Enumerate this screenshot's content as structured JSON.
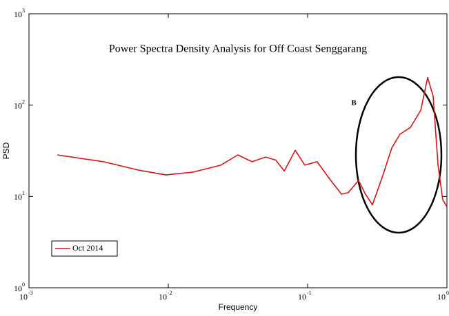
{
  "chart_data": {
    "type": "line",
    "title": "Power Spectra Density Analysis for Off Coast Senggarang",
    "x_label": "Frequency",
    "y_label": "PSD",
    "annotation": "B",
    "log_x": true,
    "log_y": true,
    "legend": "lower-left",
    "xlim": [
      0.001,
      1
    ],
    "ylim": [
      1,
      1000
    ],
    "xticks": [
      {
        "value": 0.001,
        "label": "10",
        "exponent": "-3"
      },
      {
        "value": 0.01,
        "label": "10",
        "exponent": "-2"
      },
      {
        "value": 0.1,
        "label": "10",
        "exponent": "-1"
      },
      {
        "value": 1,
        "label": "10",
        "exponent": "0"
      }
    ],
    "yticks": [
      {
        "value": 1,
        "label": "10",
        "exponent": "0"
      },
      {
        "value": 10,
        "label": "10",
        "exponent": "1"
      },
      {
        "value": 100,
        "label": "10",
        "exponent": "2"
      },
      {
        "value": 1000,
        "label": "10",
        "exponent": "3"
      }
    ],
    "x": [
      0.0016,
      0.00343,
      0.00605,
      0.0096,
      0.0151,
      0.0238,
      0.0316,
      0.0398,
      0.05,
      0.059,
      0.068,
      0.0815,
      0.0955,
      0.117,
      0.144,
      0.175,
      0.196,
      0.232,
      0.26,
      0.292,
      0.347,
      0.402,
      0.46,
      0.547,
      0.649,
      0.727,
      0.796,
      0.863,
      0.933,
      1.0
    ],
    "series": [
      {
        "name": "Oct 2014",
        "color": "#dd1111",
        "values": [
          28.5,
          24,
          19.5,
          17.2,
          18.5,
          22,
          28.5,
          24,
          27,
          25,
          19,
          32,
          22,
          24,
          15.5,
          10.6,
          11,
          15,
          10.6,
          8.1,
          17,
          34,
          48,
          57,
          88,
          200,
          126,
          22,
          9.2,
          7.7
        ]
      }
    ]
  }
}
